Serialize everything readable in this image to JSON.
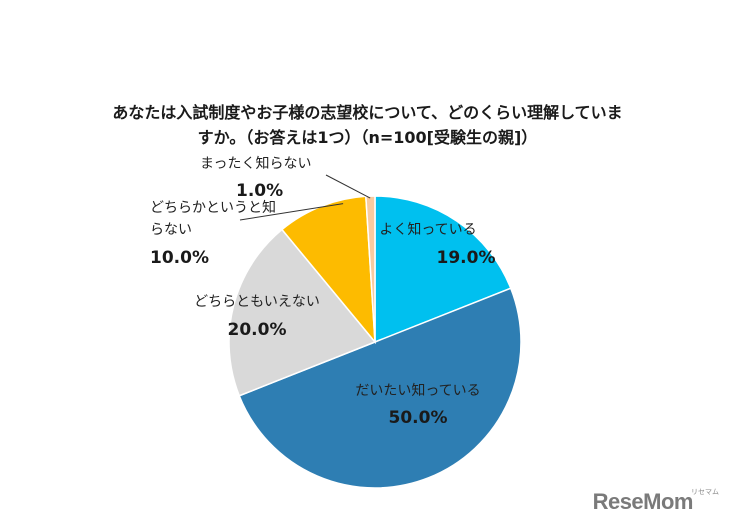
{
  "chart": {
    "title_line1": "あなたは入試制度やお子様の志望校について、どのくらい理解していま",
    "title_line2": "すか。（お答えは1つ）（n=100[受験生の親]）"
  },
  "watermark": {
    "text": "ReseMom",
    "sub": "リセマム"
  },
  "chart_data": {
    "type": "pie",
    "title": "あなたは入試制度やお子様の志望校について、どのくらい理解していますか。（お答えは1つ）（n=100[受験生の親]）",
    "start": "12 o'clock",
    "direction": "clockwise",
    "slices": [
      {
        "label": "よく知っている",
        "value": 19.0,
        "value_label": "19.0%",
        "color": "#00c0ef"
      },
      {
        "label": "だいたい知っている",
        "value": 50.0,
        "value_label": "50.0%",
        "color": "#2e7eb3"
      },
      {
        "label": "どちらともいえない",
        "value": 20.0,
        "value_label": "20.0%",
        "color": "#d9d9d9"
      },
      {
        "label": "どちらかというと知らない",
        "value": 10.0,
        "value_label": "10.0%",
        "color": "#fdbb00"
      },
      {
        "label": "まったく知らない",
        "value": 1.0,
        "value_label": "1.0%",
        "color": "#f8cba0"
      }
    ]
  }
}
